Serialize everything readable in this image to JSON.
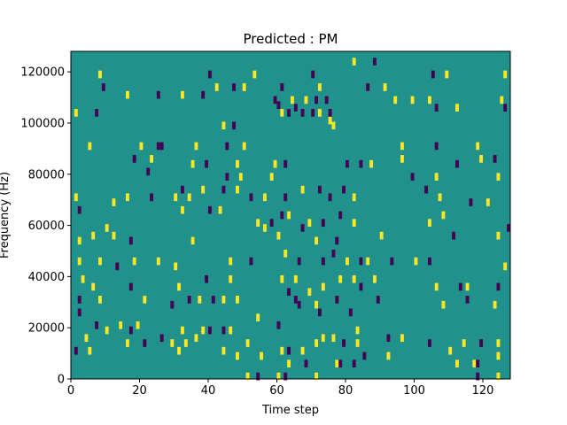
{
  "chart_data": {
    "type": "heatmap",
    "title": "Predicted : PM",
    "xlabel": "Time step",
    "ylabel": "Frequency (Hz)",
    "xlim": [
      0,
      128
    ],
    "ylim": [
      0,
      128000
    ],
    "xticks": [
      0,
      20,
      40,
      60,
      80,
      100,
      120
    ],
    "yticks": [
      0,
      20000,
      40000,
      60000,
      80000,
      100000,
      120000
    ],
    "n_freq_bins": 128,
    "background_value": 0,
    "colors": {
      "background": "#21918c",
      "low": "#440154",
      "high": "#fde725"
    },
    "cells": [
      [
        8,
        119000,
        1
      ],
      [
        9,
        114000,
        -1
      ],
      [
        40,
        119000,
        -1
      ],
      [
        42,
        114000,
        1
      ],
      [
        47,
        114000,
        -1
      ],
      [
        53,
        119000,
        1
      ],
      [
        61,
        114000,
        -1
      ],
      [
        70,
        119000,
        -1
      ],
      [
        72,
        114000,
        1
      ],
      [
        82,
        124000,
        1
      ],
      [
        86,
        114000,
        -1
      ],
      [
        88,
        124000,
        -1
      ],
      [
        91,
        114000,
        1
      ],
      [
        105,
        119000,
        -1
      ],
      [
        109,
        119000,
        1
      ],
      [
        126,
        119000,
        1
      ],
      [
        16,
        111000,
        1
      ],
      [
        25,
        111000,
        -1
      ],
      [
        32,
        111000,
        1
      ],
      [
        38,
        111000,
        -1
      ],
      [
        50,
        114000,
        1
      ],
      [
        59,
        109000,
        -1
      ],
      [
        60,
        107000,
        -1
      ],
      [
        64,
        109000,
        1
      ],
      [
        65,
        106000,
        -1
      ],
      [
        68,
        109000,
        1
      ],
      [
        71,
        109000,
        -1
      ],
      [
        74,
        109000,
        -1
      ],
      [
        94,
        109000,
        1
      ],
      [
        99,
        109000,
        1
      ],
      [
        104,
        109000,
        1
      ],
      [
        106,
        106000,
        -1
      ],
      [
        112,
        106000,
        1
      ],
      [
        125,
        109000,
        1
      ],
      [
        126,
        106000,
        -1
      ],
      [
        1,
        104000,
        1
      ],
      [
        7,
        104000,
        -1
      ],
      [
        44,
        99000,
        1
      ],
      [
        47,
        99000,
        -1
      ],
      [
        61,
        104000,
        1
      ],
      [
        63,
        104000,
        -1
      ],
      [
        67,
        104000,
        -1
      ],
      [
        70,
        104000,
        -1
      ],
      [
        72,
        104000,
        1
      ],
      [
        75,
        101000,
        1
      ],
      [
        76,
        99000,
        1
      ],
      [
        75,
        104000,
        -1
      ],
      [
        5,
        91000,
        1
      ],
      [
        20,
        91000,
        1
      ],
      [
        25,
        91000,
        -1
      ],
      [
        26,
        91000,
        -1
      ],
      [
        36,
        91000,
        1
      ],
      [
        45,
        91000,
        -1
      ],
      [
        50,
        91000,
        1
      ],
      [
        96,
        91000,
        1
      ],
      [
        106,
        91000,
        -1
      ],
      [
        118,
        91000,
        1
      ],
      [
        18,
        86000,
        -1
      ],
      [
        23,
        86000,
        1
      ],
      [
        35,
        84000,
        1
      ],
      [
        39,
        84000,
        -1
      ],
      [
        48,
        84000,
        1
      ],
      [
        59,
        84000,
        1
      ],
      [
        62,
        84000,
        -1
      ],
      [
        80,
        84000,
        -1
      ],
      [
        84,
        84000,
        -1
      ],
      [
        87,
        84000,
        1
      ],
      [
        96,
        86000,
        1
      ],
      [
        112,
        84000,
        -1
      ],
      [
        119,
        86000,
        1
      ],
      [
        123,
        86000,
        -1
      ],
      [
        22,
        81000,
        -1
      ],
      [
        45,
        79000,
        -1
      ],
      [
        49,
        79000,
        1
      ],
      [
        58,
        79000,
        1
      ],
      [
        99,
        79000,
        -1
      ],
      [
        106,
        79000,
        1
      ],
      [
        124,
        79000,
        1
      ],
      [
        1,
        71000,
        1
      ],
      [
        2,
        66000,
        -1
      ],
      [
        12,
        69000,
        1
      ],
      [
        16,
        71000,
        1
      ],
      [
        23,
        71000,
        -1
      ],
      [
        30,
        71000,
        1
      ],
      [
        32,
        74000,
        -1
      ],
      [
        34,
        71000,
        1
      ],
      [
        38,
        74000,
        1
      ],
      [
        44,
        74000,
        -1
      ],
      [
        48,
        74000,
        1
      ],
      [
        52,
        71000,
        -1
      ],
      [
        56,
        71000,
        1
      ],
      [
        62,
        71000,
        -1
      ],
      [
        67,
        74000,
        1
      ],
      [
        72,
        74000,
        -1
      ],
      [
        75,
        71000,
        -1
      ],
      [
        79,
        74000,
        -1
      ],
      [
        82,
        71000,
        1
      ],
      [
        103,
        74000,
        -1
      ],
      [
        107,
        71000,
        1
      ],
      [
        116,
        69000,
        -1
      ],
      [
        121,
        69000,
        1
      ],
      [
        10,
        59000,
        1
      ],
      [
        32,
        66000,
        1
      ],
      [
        40,
        66000,
        -1
      ],
      [
        43,
        66000,
        1
      ],
      [
        54,
        61000,
        1
      ],
      [
        58,
        61000,
        -1
      ],
      [
        61,
        64000,
        -1
      ],
      [
        63,
        64000,
        1
      ],
      [
        69,
        61000,
        1
      ],
      [
        73,
        61000,
        -1
      ],
      [
        78,
        64000,
        -1
      ],
      [
        82,
        61000,
        1
      ],
      [
        90,
        56000,
        1
      ],
      [
        104,
        61000,
        1
      ],
      [
        108,
        64000,
        1
      ],
      [
        111,
        56000,
        -1
      ],
      [
        124,
        56000,
        1
      ],
      [
        127,
        59000,
        -1
      ],
      [
        2,
        54000,
        1
      ],
      [
        6,
        56000,
        1
      ],
      [
        12,
        56000,
        1
      ],
      [
        17,
        54000,
        -1
      ],
      [
        35,
        54000,
        1
      ],
      [
        56,
        59000,
        1
      ],
      [
        60,
        56000,
        1
      ],
      [
        67,
        59000,
        -1
      ],
      [
        71,
        54000,
        1
      ],
      [
        77,
        54000,
        -1
      ],
      [
        2,
        46000,
        1
      ],
      [
        8,
        46000,
        1
      ],
      [
        13,
        44000,
        -1
      ],
      [
        18,
        46000,
        1
      ],
      [
        25,
        46000,
        1
      ],
      [
        30,
        44000,
        1
      ],
      [
        46,
        46000,
        1
      ],
      [
        52,
        46000,
        -1
      ],
      [
        62,
        49000,
        1
      ],
      [
        66,
        46000,
        -1
      ],
      [
        73,
        46000,
        -1
      ],
      [
        76,
        49000,
        -1
      ],
      [
        80,
        46000,
        1
      ],
      [
        84,
        46000,
        -1
      ],
      [
        86,
        46000,
        1
      ],
      [
        93,
        46000,
        -1
      ],
      [
        100,
        46000,
        1
      ],
      [
        104,
        46000,
        -1
      ],
      [
        126,
        44000,
        1
      ],
      [
        3,
        39000,
        1
      ],
      [
        6,
        36000,
        1
      ],
      [
        17,
        36000,
        -1
      ],
      [
        31,
        36000,
        1
      ],
      [
        39,
        39000,
        -1
      ],
      [
        46,
        39000,
        1
      ],
      [
        61,
        39000,
        1
      ],
      [
        63,
        34000,
        -1
      ],
      [
        65,
        39000,
        1
      ],
      [
        69,
        34000,
        1
      ],
      [
        73,
        36000,
        1
      ],
      [
        78,
        39000,
        1
      ],
      [
        82,
        39000,
        1
      ],
      [
        84,
        36000,
        -1
      ],
      [
        88,
        39000,
        1
      ],
      [
        106,
        36000,
        1
      ],
      [
        113,
        36000,
        -1
      ],
      [
        115,
        36000,
        1
      ],
      [
        124,
        36000,
        -1
      ],
      [
        2,
        31000,
        -1
      ],
      [
        8,
        31000,
        1
      ],
      [
        21,
        31000,
        1
      ],
      [
        29,
        29000,
        -1
      ],
      [
        34,
        31000,
        -1
      ],
      [
        37,
        31000,
        1
      ],
      [
        41,
        31000,
        -1
      ],
      [
        44,
        31000,
        1
      ],
      [
        48,
        31000,
        1
      ],
      [
        65,
        31000,
        -1
      ],
      [
        66,
        29000,
        -1
      ],
      [
        71,
        29000,
        1
      ],
      [
        77,
        31000,
        -1
      ],
      [
        89,
        31000,
        -1
      ],
      [
        108,
        29000,
        1
      ],
      [
        115,
        31000,
        -1
      ],
      [
        123,
        29000,
        1
      ],
      [
        2,
        26000,
        -1
      ],
      [
        7,
        21000,
        -1
      ],
      [
        14,
        21000,
        1
      ],
      [
        17,
        19000,
        -1
      ],
      [
        19,
        21000,
        1
      ],
      [
        32,
        19000,
        1
      ],
      [
        38,
        19000,
        1
      ],
      [
        40,
        19000,
        -1
      ],
      [
        44,
        19000,
        -1
      ],
      [
        46,
        19000,
        1
      ],
      [
        54,
        24000,
        1
      ],
      [
        60,
        21000,
        -1
      ],
      [
        72,
        26000,
        -1
      ],
      [
        73,
        16000,
        1
      ],
      [
        76,
        16000,
        1
      ],
      [
        81,
        26000,
        -1
      ],
      [
        83,
        19000,
        1
      ],
      [
        4,
        16000,
        1
      ],
      [
        10,
        19000,
        1
      ],
      [
        16,
        14000,
        1
      ],
      [
        21,
        14000,
        -1
      ],
      [
        26,
        16000,
        -1
      ],
      [
        29,
        14000,
        1
      ],
      [
        33,
        14000,
        1
      ],
      [
        36,
        16000,
        1
      ],
      [
        48,
        9000,
        1
      ],
      [
        51,
        14000,
        1
      ],
      [
        55,
        9000,
        1
      ],
      [
        61,
        11000,
        1
      ],
      [
        63,
        11000,
        -1
      ],
      [
        67,
        11000,
        1
      ],
      [
        71,
        14000,
        1
      ],
      [
        79,
        14000,
        -1
      ],
      [
        83,
        14000,
        1
      ],
      [
        92,
        16000,
        -1
      ],
      [
        96,
        16000,
        1
      ],
      [
        104,
        14000,
        -1
      ],
      [
        110,
        11000,
        1
      ],
      [
        114,
        14000,
        1
      ],
      [
        119,
        14000,
        -1
      ],
      [
        124,
        14000,
        1
      ],
      [
        1,
        11000,
        -1
      ],
      [
        5,
        11000,
        1
      ],
      [
        31,
        11000,
        1
      ],
      [
        44,
        11000,
        1
      ],
      [
        63,
        6000,
        1
      ],
      [
        68,
        6000,
        -1
      ],
      [
        77,
        6000,
        1
      ],
      [
        78,
        6000,
        -1
      ],
      [
        82,
        6000,
        -1
      ],
      [
        85,
        9000,
        -1
      ],
      [
        92,
        9000,
        1
      ],
      [
        112,
        6000,
        1
      ],
      [
        117,
        6000,
        1
      ],
      [
        118,
        6000,
        -1
      ],
      [
        124,
        9000,
        1
      ],
      [
        51,
        1000,
        1
      ],
      [
        54,
        1000,
        -1
      ],
      [
        60,
        1000,
        1
      ],
      [
        62,
        1000,
        -1
      ],
      [
        71,
        1000,
        1
      ],
      [
        118,
        1000,
        -1
      ],
      [
        124,
        1000,
        1
      ]
    ]
  }
}
